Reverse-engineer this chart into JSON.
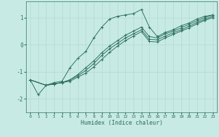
{
  "bg_color": "#c8eae4",
  "line_color": "#2a6e5e",
  "grid_color": "#b0d8d0",
  "xlabel": "Humidex (Indice chaleur)",
  "xlim": [
    -0.5,
    23.5
  ],
  "ylim": [
    -2.5,
    1.6
  ],
  "yticks": [
    -2,
    -1,
    0,
    1
  ],
  "xticks": [
    0,
    1,
    2,
    3,
    4,
    5,
    6,
    7,
    8,
    9,
    10,
    11,
    12,
    13,
    14,
    15,
    16,
    17,
    18,
    19,
    20,
    21,
    22,
    23
  ],
  "lines": [
    {
      "x": [
        0,
        1,
        2,
        3,
        4,
        5,
        6,
        7,
        8,
        9,
        10,
        11,
        12,
        13,
        14,
        15,
        16,
        17,
        18,
        19,
        20,
        21,
        22,
        23
      ],
      "y": [
        -1.3,
        -1.85,
        -1.5,
        -1.4,
        -1.35,
        -0.85,
        -0.5,
        -0.25,
        0.25,
        0.65,
        0.95,
        1.05,
        1.1,
        1.15,
        1.3,
        0.65,
        0.3,
        0.45,
        0.55,
        0.7,
        0.8,
        0.95,
        1.05,
        1.1
      ],
      "marker": "+"
    },
    {
      "x": [
        0,
        2,
        3,
        4,
        5,
        6,
        7,
        8,
        9,
        10,
        11,
        12,
        13,
        14,
        15,
        16,
        17,
        18,
        19,
        20,
        21,
        22,
        23
      ],
      "y": [
        -1.3,
        -1.5,
        -1.45,
        -1.4,
        -1.3,
        -1.1,
        -0.85,
        -0.6,
        -0.3,
        -0.05,
        0.15,
        0.35,
        0.5,
        0.65,
        0.3,
        0.25,
        0.4,
        0.5,
        0.62,
        0.75,
        0.88,
        1.0,
        1.1
      ],
      "marker": "+"
    },
    {
      "x": [
        0,
        2,
        3,
        4,
        5,
        6,
        7,
        8,
        9,
        10,
        11,
        12,
        13,
        14,
        15,
        16,
        17,
        18,
        19,
        20,
        21,
        22,
        23
      ],
      "y": [
        -1.3,
        -1.5,
        -1.45,
        -1.4,
        -1.3,
        -1.15,
        -0.95,
        -0.7,
        -0.4,
        -0.15,
        0.05,
        0.25,
        0.4,
        0.55,
        0.2,
        0.18,
        0.32,
        0.44,
        0.55,
        0.68,
        0.82,
        0.94,
        1.05
      ],
      "marker": "+"
    },
    {
      "x": [
        0,
        2,
        3,
        4,
        5,
        6,
        7,
        8,
        9,
        10,
        11,
        12,
        13,
        14,
        15,
        16,
        17,
        18,
        19,
        20,
        21,
        22,
        23
      ],
      "y": [
        -1.3,
        -1.5,
        -1.45,
        -1.4,
        -1.35,
        -1.2,
        -1.05,
        -0.82,
        -0.55,
        -0.28,
        -0.05,
        0.15,
        0.32,
        0.48,
        0.12,
        0.1,
        0.25,
        0.38,
        0.5,
        0.62,
        0.77,
        0.9,
        1.0
      ],
      "marker": "+"
    }
  ]
}
